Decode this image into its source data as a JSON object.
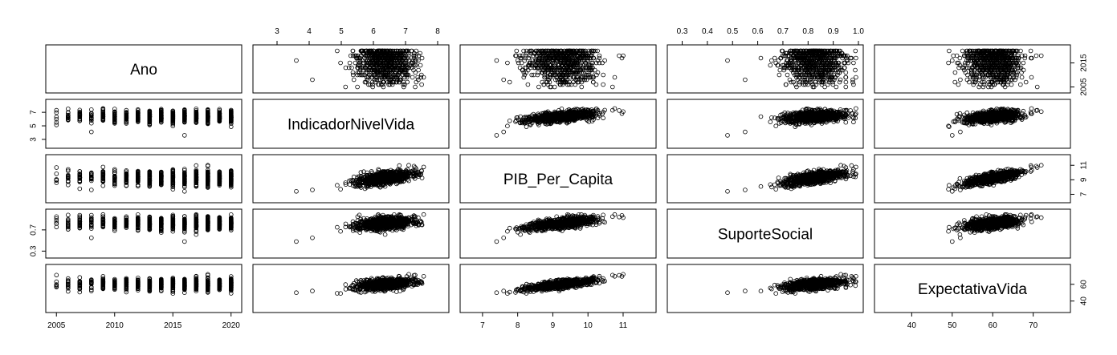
{
  "chart_data": {
    "type": "scatter",
    "matrix": true,
    "title": "",
    "point_style": "open-circle",
    "variables": [
      {
        "name": "Ano",
        "range": [
          2004.5,
          2020.5
        ],
        "ticks": [
          "2005",
          "2010",
          "2015",
          "2020"
        ],
        "tick_values": [
          2005,
          2010,
          2015,
          2020
        ]
      },
      {
        "name": "IndicadorNivelVida",
        "range": [
          2.4,
          8.2
        ],
        "ticks": [
          "3",
          "4",
          "5",
          "6",
          "7",
          "8"
        ],
        "tick_values": [
          3,
          4,
          5,
          6,
          7,
          8
        ]
      },
      {
        "name": "PIB_Per_Capita",
        "range": [
          6.5,
          11.8
        ],
        "ticks": [
          "7",
          "8",
          "9",
          "10",
          "11"
        ],
        "tick_values": [
          7,
          8,
          9,
          10,
          11
        ]
      },
      {
        "name": "SuporteSocial",
        "range": [
          0.26,
          1.0
        ],
        "ticks": [
          "0.3",
          "0.4",
          "0.5",
          "0.6",
          "0.7",
          "0.8",
          "0.9",
          "1.0"
        ],
        "tick_values": [
          0.3,
          0.4,
          0.5,
          0.6,
          0.7,
          0.8,
          0.9,
          1.0
        ]
      },
      {
        "name": "ExpectativaVida",
        "range": [
          32,
          78
        ],
        "ticks": [
          "40",
          "50",
          "60",
          "70"
        ],
        "tick_values": [
          40,
          50,
          60,
          70
        ]
      }
    ],
    "left_axis": [
      {
        "row": 1,
        "ticks": [
          "3",
          "5",
          "7"
        ],
        "tick_values": [
          3,
          5,
          7
        ]
      },
      {
        "row": 3,
        "ticks": [
          "0.3",
          "0.7"
        ],
        "tick_values": [
          0.3,
          0.7
        ]
      }
    ],
    "right_axis": [
      {
        "row": 0,
        "ticks": [
          "2005",
          "2015"
        ],
        "tick_values": [
          2005,
          2015
        ]
      },
      {
        "row": 2,
        "ticks": [
          "7",
          "9",
          "11"
        ],
        "tick_values": [
          7,
          9,
          11
        ]
      },
      {
        "row": 4,
        "ticks": [
          "40",
          "60"
        ],
        "tick_values": [
          40,
          60
        ]
      }
    ],
    "top_axis": [
      {
        "col": 1,
        "ticks": [
          "3",
          "4",
          "5",
          "6",
          "7",
          "8"
        ],
        "tick_values": [
          3,
          4,
          5,
          6,
          7,
          8
        ]
      },
      {
        "col": 3,
        "ticks": [
          "0.3",
          "0.4",
          "0.5",
          "0.6",
          "0.7",
          "0.8",
          "0.9",
          "1.0"
        ],
        "tick_values": [
          0.3,
          0.4,
          0.5,
          0.6,
          0.7,
          0.8,
          0.9,
          1.0
        ]
      }
    ],
    "bottom_axis": [
      {
        "col": 0,
        "ticks": [
          "2005",
          "2010",
          "2015",
          "2020"
        ],
        "tick_values": [
          2005,
          2010,
          2015,
          2020
        ]
      },
      {
        "col": 2,
        "ticks": [
          "7",
          "8",
          "9",
          "10",
          "11"
        ],
        "tick_values": [
          7,
          8,
          9,
          10,
          11
        ]
      },
      {
        "col": 4,
        "ticks": [
          "40",
          "50",
          "60",
          "70"
        ],
        "tick_values": [
          40,
          50,
          60,
          70
        ]
      }
    ],
    "representative_points": [
      {
        "Ano": 2005,
        "IndicadorNivelVida": 7.3,
        "PIB_Per_Capita": 10.7,
        "SuporteSocial": 0.95,
        "ExpectativaVida": 71
      },
      {
        "Ano": 2008,
        "IndicadorNivelVida": 4.1,
        "PIB_Per_Capita": 7.6,
        "SuporteSocial": 0.55,
        "ExpectativaVida": 52
      },
      {
        "Ano": 2010,
        "IndicadorNivelVida": 5.5,
        "PIB_Per_Capita": 9.2,
        "SuporteSocial": 0.78,
        "ExpectativaVida": 63
      },
      {
        "Ano": 2013,
        "IndicadorNivelVida": 6.4,
        "PIB_Per_Capita": 10.1,
        "SuporteSocial": 0.87,
        "ExpectativaVida": 67
      },
      {
        "Ano": 2016,
        "IndicadorNivelVida": 3.6,
        "PIB_Per_Capita": 7.4,
        "SuporteSocial": 0.48,
        "ExpectativaVida": 50
      },
      {
        "Ano": 2018,
        "IndicadorNivelVida": 7.1,
        "PIB_Per_Capita": 11.0,
        "SuporteSocial": 0.93,
        "ExpectativaVida": 72
      },
      {
        "Ano": 2020,
        "IndicadorNivelVida": 5.9,
        "PIB_Per_Capita": 9.6,
        "SuporteSocial": 0.82,
        "ExpectativaVida": 65
      }
    ]
  }
}
